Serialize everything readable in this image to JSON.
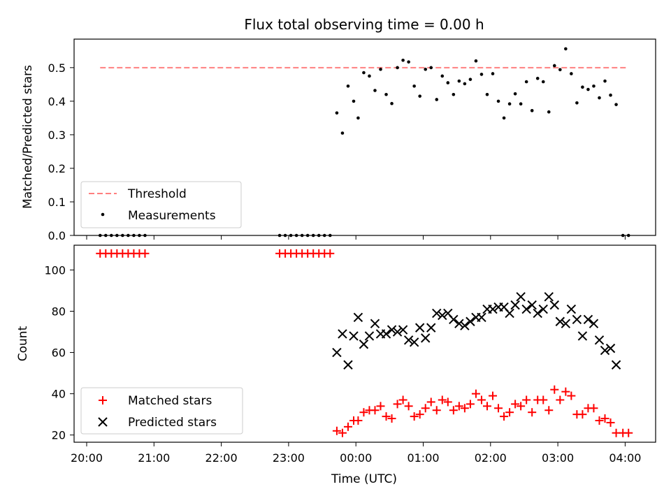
{
  "chart_data": [
    {
      "type": "scatter",
      "title": "Flux total observing time = 0.00 h",
      "xlabel": "",
      "ylabel": "Matched/Predicted stars",
      "ylim": [
        0,
        0.585
      ],
      "yticks": [
        "0.0",
        "0.1",
        "0.2",
        "0.3",
        "0.4",
        "0.5"
      ],
      "legend_position": "bottom-left",
      "threshold": {
        "name": "Threshold",
        "value": 0.5,
        "x_start": "20:12",
        "x_end": "04:02",
        "color": "#ff7f7f",
        "style": "dashed"
      },
      "series": [
        {
          "name": "Measurements",
          "color": "#000000",
          "marker": "dot",
          "points": [
            [
              "20:12",
              0
            ],
            [
              "20:17",
              0
            ],
            [
              "20:22",
              0
            ],
            [
              "20:27",
              0
            ],
            [
              "20:32",
              0
            ],
            [
              "20:37",
              0
            ],
            [
              "20:42",
              0
            ],
            [
              "20:47",
              0
            ],
            [
              "20:52",
              0
            ],
            [
              "22:52",
              0
            ],
            [
              "22:57",
              0
            ],
            [
              "23:02",
              0
            ],
            [
              "23:07",
              0
            ],
            [
              "23:12",
              0
            ],
            [
              "23:17",
              0
            ],
            [
              "23:22",
              0
            ],
            [
              "23:27",
              0
            ],
            [
              "23:32",
              0
            ],
            [
              "23:37",
              0
            ],
            [
              "23:43",
              0.365
            ],
            [
              "23:48",
              0.305
            ],
            [
              "23:53",
              0.445
            ],
            [
              "23:58",
              0.4
            ],
            [
              "00:02",
              0.35
            ],
            [
              "00:07",
              0.485
            ],
            [
              "00:12",
              0.475
            ],
            [
              "00:17",
              0.432
            ],
            [
              "00:22",
              0.495
            ],
            [
              "00:27",
              0.42
            ],
            [
              "00:32",
              0.393
            ],
            [
              "00:37",
              0.5
            ],
            [
              "00:42",
              0.522
            ],
            [
              "00:47",
              0.517
            ],
            [
              "00:52",
              0.445
            ],
            [
              "00:57",
              0.415
            ],
            [
              "01:02",
              0.495
            ],
            [
              "01:07",
              0.5
            ],
            [
              "01:12",
              0.405
            ],
            [
              "01:17",
              0.475
            ],
            [
              "01:22",
              0.455
            ],
            [
              "01:27",
              0.42
            ],
            [
              "01:32",
              0.46
            ],
            [
              "01:37",
              0.452
            ],
            [
              "01:42",
              0.465
            ],
            [
              "01:47",
              0.52
            ],
            [
              "01:52",
              0.48
            ],
            [
              "01:57",
              0.42
            ],
            [
              "02:02",
              0.482
            ],
            [
              "02:07",
              0.4
            ],
            [
              "02:12",
              0.35
            ],
            [
              "02:17",
              0.392
            ],
            [
              "02:22",
              0.422
            ],
            [
              "02:27",
              0.392
            ],
            [
              "02:32",
              0.458
            ],
            [
              "02:37",
              0.372
            ],
            [
              "02:42",
              0.468
            ],
            [
              "02:47",
              0.458
            ],
            [
              "02:52",
              0.368
            ],
            [
              "02:57",
              0.506
            ],
            [
              "03:02",
              0.494
            ],
            [
              "03:07",
              0.556
            ],
            [
              "03:12",
              0.482
            ],
            [
              "03:17",
              0.395
            ],
            [
              "03:22",
              0.442
            ],
            [
              "03:27",
              0.435
            ],
            [
              "03:32",
              0.445
            ],
            [
              "03:37",
              0.41
            ],
            [
              "03:42",
              0.46
            ],
            [
              "03:47",
              0.418
            ],
            [
              "03:52",
              0.39
            ],
            [
              "03:58",
              0
            ],
            [
              "04:03",
              0
            ]
          ]
        }
      ]
    },
    {
      "type": "scatter",
      "title": "",
      "xlabel": "Time (UTC)",
      "ylabel": "Count",
      "ylim": [
        16.5,
        112
      ],
      "yticks": [
        "20",
        "40",
        "60",
        "80",
        "100"
      ],
      "xticks": [
        "20:00",
        "21:00",
        "22:00",
        "23:00",
        "00:00",
        "01:00",
        "02:00",
        "03:00",
        "04:00"
      ],
      "legend_position": "bottom-left",
      "series": [
        {
          "name": "Matched stars",
          "color": "#ff0000",
          "marker": "plus",
          "points": [
            [
              "20:12",
              108
            ],
            [
              "20:17",
              108
            ],
            [
              "20:22",
              108
            ],
            [
              "20:27",
              108
            ],
            [
              "20:32",
              108
            ],
            [
              "20:37",
              108
            ],
            [
              "20:42",
              108
            ],
            [
              "20:47",
              108
            ],
            [
              "20:52",
              108
            ],
            [
              "22:52",
              108
            ],
            [
              "22:57",
              108
            ],
            [
              "23:02",
              108
            ],
            [
              "23:07",
              108
            ],
            [
              "23:12",
              108
            ],
            [
              "23:17",
              108
            ],
            [
              "23:22",
              108
            ],
            [
              "23:27",
              108
            ],
            [
              "23:32",
              108
            ],
            [
              "23:37",
              108
            ],
            [
              "23:43",
              22
            ],
            [
              "23:48",
              21
            ],
            [
              "23:53",
              24
            ],
            [
              "23:58",
              27
            ],
            [
              "00:02",
              27
            ],
            [
              "00:07",
              31
            ],
            [
              "00:12",
              32
            ],
            [
              "00:17",
              32
            ],
            [
              "00:22",
              34
            ],
            [
              "00:27",
              29
            ],
            [
              "00:32",
              28
            ],
            [
              "00:37",
              35
            ],
            [
              "00:42",
              37
            ],
            [
              "00:47",
              34
            ],
            [
              "00:52",
              29
            ],
            [
              "00:57",
              30
            ],
            [
              "01:02",
              33
            ],
            [
              "01:07",
              36
            ],
            [
              "01:12",
              32
            ],
            [
              "01:17",
              37
            ],
            [
              "01:22",
              36
            ],
            [
              "01:27",
              32
            ],
            [
              "01:32",
              34
            ],
            [
              "01:37",
              33
            ],
            [
              "01:42",
              35
            ],
            [
              "01:47",
              40
            ],
            [
              "01:52",
              37
            ],
            [
              "01:57",
              34
            ],
            [
              "02:02",
              39
            ],
            [
              "02:07",
              33
            ],
            [
              "02:12",
              29
            ],
            [
              "02:17",
              31
            ],
            [
              "02:22",
              35
            ],
            [
              "02:27",
              34
            ],
            [
              "02:32",
              37
            ],
            [
              "02:37",
              31
            ],
            [
              "02:42",
              37
            ],
            [
              "02:47",
              37
            ],
            [
              "02:52",
              32
            ],
            [
              "02:57",
              42
            ],
            [
              "03:02",
              37
            ],
            [
              "03:07",
              41
            ],
            [
              "03:12",
              39
            ],
            [
              "03:17",
              30
            ],
            [
              "03:22",
              30
            ],
            [
              "03:27",
              33
            ],
            [
              "03:32",
              33
            ],
            [
              "03:37",
              27
            ],
            [
              "03:42",
              28
            ],
            [
              "03:47",
              26
            ],
            [
              "03:52",
              21
            ],
            [
              "03:58",
              21
            ],
            [
              "04:03",
              21
            ]
          ]
        },
        {
          "name": "Predicted stars",
          "color": "#000000",
          "marker": "x",
          "points": [
            [
              "23:43",
              60
            ],
            [
              "23:48",
              69
            ],
            [
              "23:53",
              54
            ],
            [
              "23:58",
              68
            ],
            [
              "00:02",
              77
            ],
            [
              "00:07",
              64
            ],
            [
              "00:12",
              68
            ],
            [
              "00:17",
              74
            ],
            [
              "00:22",
              69
            ],
            [
              "00:27",
              69
            ],
            [
              "00:32",
              71
            ],
            [
              "00:37",
              70
            ],
            [
              "00:42",
              71
            ],
            [
              "00:47",
              66
            ],
            [
              "00:52",
              65
            ],
            [
              "00:57",
              72
            ],
            [
              "01:02",
              67
            ],
            [
              "01:07",
              72
            ],
            [
              "01:12",
              79
            ],
            [
              "01:17",
              78
            ],
            [
              "01:22",
              79
            ],
            [
              "01:27",
              76
            ],
            [
              "01:32",
              74
            ],
            [
              "01:37",
              73
            ],
            [
              "01:42",
              75
            ],
            [
              "01:47",
              77
            ],
            [
              "01:52",
              77
            ],
            [
              "01:57",
              81
            ],
            [
              "02:02",
              81
            ],
            [
              "02:07",
              82
            ],
            [
              "02:12",
              82
            ],
            [
              "02:17",
              79
            ],
            [
              "02:22",
              83
            ],
            [
              "02:27",
              87
            ],
            [
              "02:32",
              81
            ],
            [
              "02:37",
              83
            ],
            [
              "02:42",
              79
            ],
            [
              "02:47",
              81
            ],
            [
              "02:52",
              87
            ],
            [
              "02:57",
              83
            ],
            [
              "03:02",
              75
            ],
            [
              "03:07",
              74
            ],
            [
              "03:12",
              81
            ],
            [
              "03:17",
              76
            ],
            [
              "03:22",
              68
            ],
            [
              "03:27",
              76
            ],
            [
              "03:32",
              74
            ],
            [
              "03:37",
              66
            ],
            [
              "03:42",
              61
            ],
            [
              "03:47",
              62
            ],
            [
              "03:52",
              54
            ]
          ]
        }
      ]
    }
  ]
}
